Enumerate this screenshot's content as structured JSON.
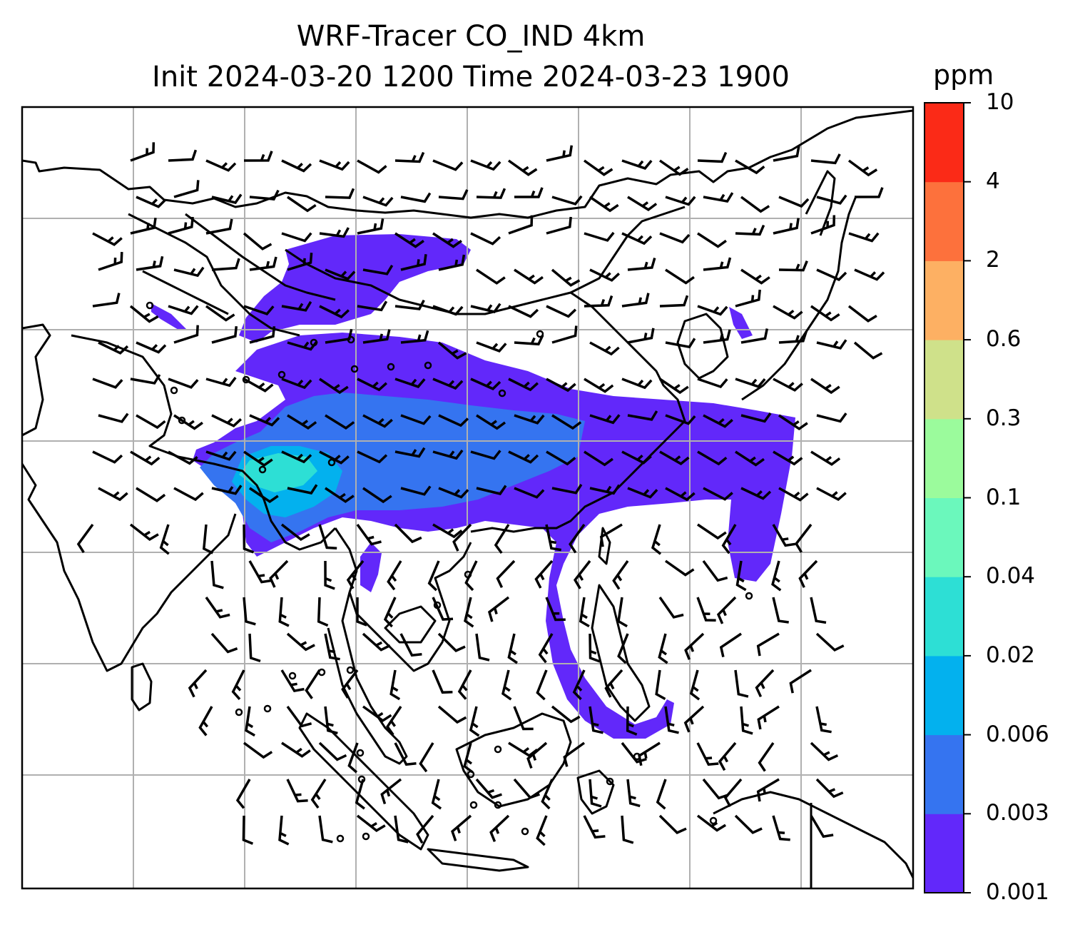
{
  "title": {
    "line1": "WRF-Tracer CO_IND 4km",
    "line2": "Init 2024-03-20 1200 Time 2024-03-23 1900"
  },
  "colorbar": {
    "unit": "ppm",
    "levels": [
      "0.001",
      "0.003",
      "0.006",
      "0.02",
      "0.04",
      "0.1",
      "0.3",
      "0.6",
      "2",
      "4",
      "10"
    ],
    "colors": [
      "#6228fa",
      "#3574f0",
      "#03b1ee",
      "#2ddfd5",
      "#6bf8bc",
      "#9bfb9c",
      "#cfe18a",
      "#fdb063",
      "#fd713c",
      "#fb2a17"
    ]
  },
  "map": {
    "region": "South and East Asia",
    "gridlines": true,
    "grid_color": "#b0b0b0",
    "coastline_color": "#000000",
    "barb_color": "#000000"
  }
}
